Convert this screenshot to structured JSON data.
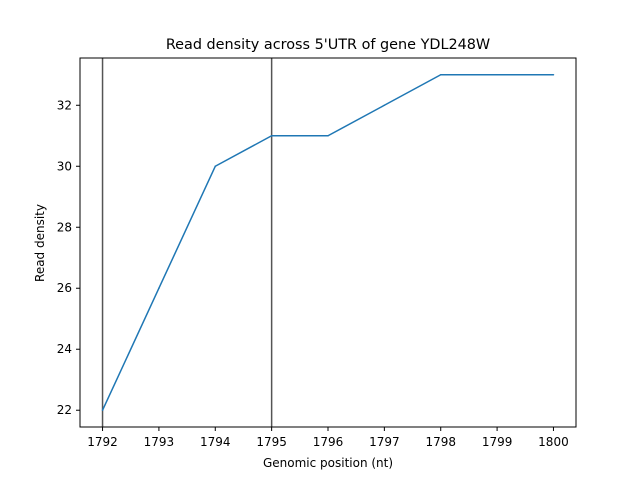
{
  "chart_data": {
    "type": "line",
    "title": "Read density across 5'UTR of gene YDL248W",
    "xlabel": "Genomic position (nt)",
    "ylabel": "Read density",
    "x": [
      1792,
      1793,
      1794,
      1795,
      1796,
      1797,
      1798,
      1799,
      1800
    ],
    "series": [
      {
        "values": [
          22,
          26,
          30,
          31,
          31,
          32,
          33,
          33,
          33
        ],
        "color": "#1f77b4"
      }
    ],
    "vlines": [
      1792,
      1795
    ],
    "vline_color": "#555555",
    "xlim": [
      1791.6,
      1800.4
    ],
    "ylim": [
      21.45,
      33.55
    ],
    "xticks": [
      1792,
      1793,
      1794,
      1795,
      1796,
      1797,
      1798,
      1799,
      1800
    ],
    "yticks": [
      22,
      24,
      26,
      28,
      30,
      32
    ],
    "grid": false,
    "legend": "none"
  }
}
